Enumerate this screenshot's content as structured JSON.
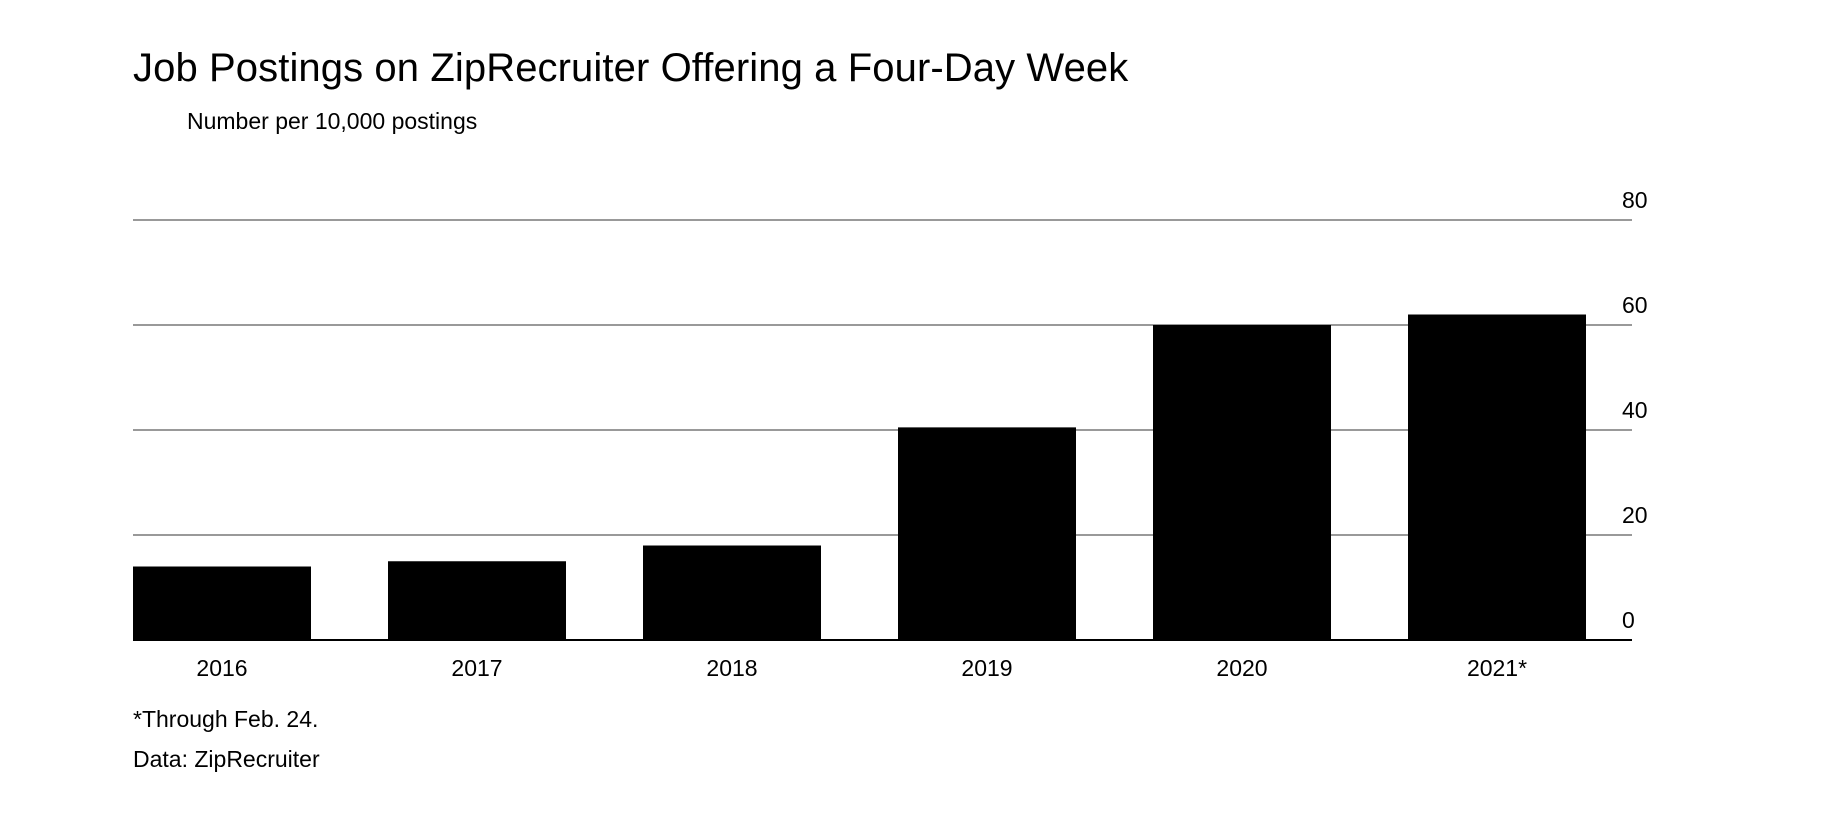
{
  "chart_data": {
    "type": "bar",
    "title": "Job Postings on ZipRecruiter Offering a Four-Day Week",
    "subtitle": "Number per 10,000 postings",
    "categories": [
      "2016",
      "2017",
      "2018",
      "2019",
      "2020",
      "2021*"
    ],
    "values": [
      14,
      15,
      18,
      40.5,
      60,
      62
    ],
    "xlabel": "",
    "ylabel": "Number per 10,000 postings",
    "ylim": [
      0,
      80
    ],
    "yticks": [
      80,
      60,
      40,
      20,
      0
    ],
    "ytick_labels": [
      "80",
      "60",
      "40",
      "20",
      "0"
    ],
    "grid": true,
    "y_axis_side": "right",
    "bar_color": "#000000",
    "grid_color": "#999999",
    "footnote": "*Through Feb. 24.",
    "source": "Data: ZipRecruiter"
  }
}
